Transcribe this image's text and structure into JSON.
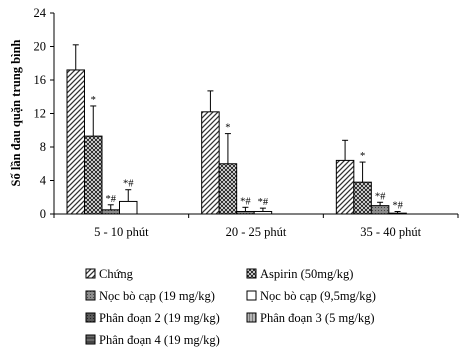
{
  "chart_data": {
    "type": "bar",
    "ylabel": "Số lần đau quặn trung bình",
    "ylim": [
      0,
      24
    ],
    "yticks": [
      0,
      4,
      8,
      12,
      16,
      20,
      24
    ],
    "grid": false,
    "legend_position": "bottom",
    "categories": [
      "5 - 10 phút",
      "20 - 25 phút",
      "35 - 40 phút"
    ],
    "series": [
      {
        "name": "Chứng",
        "pattern": "diag-fwd",
        "values": [
          17.2,
          12.2,
          6.4
        ],
        "errors": [
          3.0,
          2.5,
          2.4
        ],
        "annotations": [
          "",
          "",
          ""
        ]
      },
      {
        "name": "Aspirin (50mg/kg)",
        "pattern": "cross",
        "values": [
          9.3,
          6.0,
          3.8
        ],
        "errors": [
          3.6,
          3.6,
          2.4
        ],
        "annotations": [
          "*",
          "*",
          "*"
        ]
      },
      {
        "name": "Nọc bò cạp (19 mg/kg)",
        "pattern": "dense",
        "values": [
          0.5,
          0.3,
          1.0
        ],
        "errors": [
          0.6,
          0.5,
          0.4
        ],
        "annotations": [
          "*#",
          "*#",
          "*#"
        ]
      },
      {
        "name": "Nọc bò cạp (9,5mg/kg)",
        "pattern": "blank",
        "values": [
          1.5,
          0.3,
          0.1
        ],
        "errors": [
          1.4,
          0.4,
          0.2
        ],
        "annotations": [
          "*#",
          "*#",
          "*#"
        ]
      },
      {
        "name": "Phân đoạn 2 (19 mg/kg)",
        "pattern": "grid-dark",
        "values": [
          0,
          0,
          0
        ],
        "errors": [
          0,
          0,
          0
        ],
        "annotations": [
          "",
          "",
          ""
        ]
      },
      {
        "name": "Phân đoạn 3 (5 mg/kg)",
        "pattern": "grid-light",
        "values": [
          0,
          0,
          0
        ],
        "errors": [
          0,
          0,
          0
        ],
        "annotations": [
          "",
          "",
          ""
        ]
      },
      {
        "name": "Phân đoạn 4 (19 mg/kg)",
        "pattern": "hatch-dark",
        "values": [
          0,
          0,
          0
        ],
        "errors": [
          0,
          0,
          0
        ],
        "annotations": [
          "",
          "",
          ""
        ]
      }
    ]
  }
}
